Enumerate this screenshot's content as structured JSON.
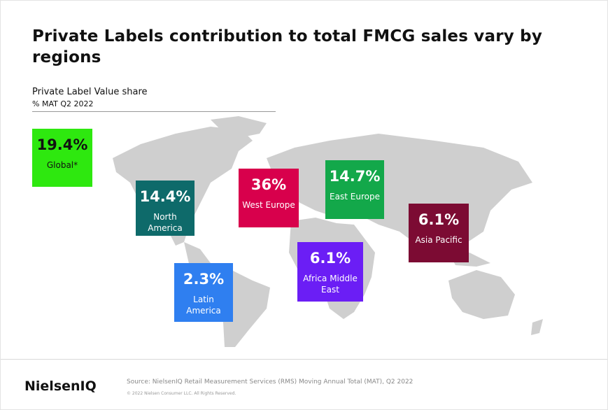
{
  "header": {
    "title": "Private Labels contribution to total FMCG sales vary by regions",
    "subtitle": "Private Label Value share",
    "measure": "% MAT Q2 2022"
  },
  "regions": [
    {
      "value": "19.4%",
      "label": "Global*",
      "color": "#2ee80f",
      "text_color": "#111111"
    },
    {
      "value": "14.4%",
      "label": "North America",
      "color": "#0e6a6a",
      "text_color": "#ffffff"
    },
    {
      "value": "36%",
      "label": "West Europe",
      "color": "#d8004c",
      "text_color": "#ffffff"
    },
    {
      "value": "14.7%",
      "label": "East Europe",
      "color": "#13a84a",
      "text_color": "#ffffff"
    },
    {
      "value": "6.1%",
      "label": "Asia Pacific",
      "color": "#7c0b33",
      "text_color": "#ffffff"
    },
    {
      "value": "6.1%",
      "label": "Africa Middle East",
      "color": "#6b1ef5",
      "text_color": "#ffffff"
    },
    {
      "value": "2.3%",
      "label": "Latin America",
      "color": "#2f7ff0",
      "text_color": "#ffffff"
    }
  ],
  "footer": {
    "logo": "NielsenIQ",
    "source": "Source: NielsenIQ Retail Measurement Services (RMS) Moving Annual Total (MAT), Q2 2022",
    "copyright": "© 2022 Nielsen Consumer LLC. All Rights Reserved."
  }
}
